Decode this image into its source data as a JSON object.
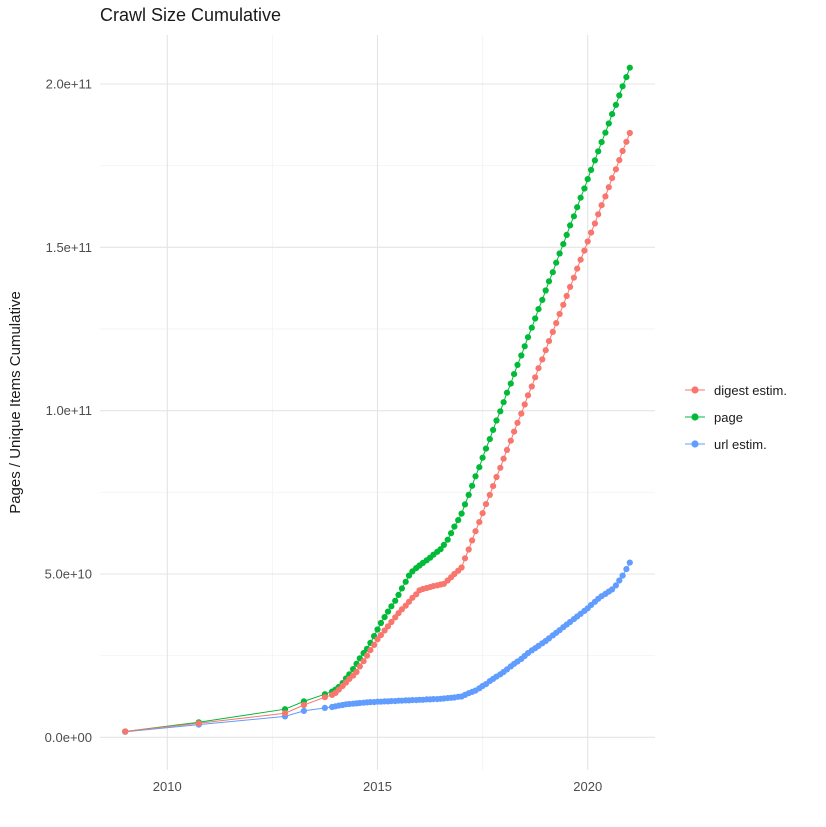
{
  "chart_data": {
    "type": "scatter",
    "title": "Crawl Size Cumulative",
    "xlabel": "",
    "ylabel": "Pages / Unique Items Cumulative",
    "legend_position": "right",
    "grid": {
      "major": "#e4e4e4",
      "minor": "#f3f3f3"
    },
    "xlim": [
      2008.4,
      2021.6
    ],
    "ylim_e9": [
      -10,
      215
    ],
    "x_ticks": {
      "values": [
        2010,
        2015,
        2020
      ],
      "labels": [
        "2010",
        "2015",
        "2020"
      ],
      "minor": [
        2012.5,
        2017.5
      ]
    },
    "y_ticks": {
      "values_e9": [
        0,
        50,
        100,
        150,
        200
      ],
      "labels": [
        "0.0e+00",
        "5.0e+10",
        "1.0e+11",
        "1.5e+11",
        "2.0e+11"
      ],
      "minor_e9": [
        25,
        75,
        125,
        175
      ]
    },
    "draw_order": [
      2,
      1,
      0
    ],
    "x": [
      2009,
      2010.75,
      2012.8,
      2013.25,
      2013.75,
      2013.92,
      2014,
      2014.08,
      2014.17,
      2014.25,
      2014.33,
      2014.42,
      2014.5,
      2014.58,
      2014.67,
      2014.75,
      2014.83,
      2014.92,
      2015,
      2015.08,
      2015.17,
      2015.25,
      2015.33,
      2015.42,
      2015.5,
      2015.58,
      2015.67,
      2015.75,
      2015.83,
      2015.92,
      2016,
      2016.08,
      2016.17,
      2016.25,
      2016.33,
      2016.42,
      2016.5,
      2016.58,
      2016.67,
      2016.75,
      2016.83,
      2016.92,
      2017,
      2017.08,
      2017.17,
      2017.25,
      2017.33,
      2017.42,
      2017.5,
      2017.58,
      2017.67,
      2017.75,
      2017.83,
      2017.92,
      2018,
      2018.08,
      2018.17,
      2018.25,
      2018.33,
      2018.42,
      2018.5,
      2018.58,
      2018.67,
      2018.75,
      2018.83,
      2018.92,
      2019,
      2019.08,
      2019.17,
      2019.25,
      2019.33,
      2019.42,
      2019.5,
      2019.58,
      2019.67,
      2019.75,
      2019.83,
      2019.92,
      2020,
      2020.08,
      2020.17,
      2020.25,
      2020.33,
      2020.42,
      2020.5,
      2020.58,
      2020.67,
      2020.75,
      2020.83,
      2020.92,
      2021
    ],
    "series": [
      {
        "name": "digest estim.",
        "slug": "digest-estim",
        "color": "#F8766D",
        "y_e9": [
          1.8,
          4.3,
          7.4,
          9.9,
          12.3,
          13,
          13.6,
          14.6,
          15.7,
          16.8,
          17.9,
          18.9,
          20,
          21.7,
          23.3,
          25,
          26.7,
          28.3,
          30,
          31.3,
          32.7,
          34,
          35.3,
          36.7,
          38,
          39.2,
          40.3,
          41.5,
          42.7,
          43.8,
          45,
          45.4,
          45.7,
          46,
          46.3,
          46.5,
          46.8,
          47,
          48,
          49,
          50,
          51,
          52,
          54.8,
          57.5,
          60.3,
          63.1,
          65.9,
          68.6,
          71.4,
          74.2,
          76.9,
          79.7,
          82.5,
          85.3,
          88,
          90.8,
          93.6,
          96.3,
          99.1,
          101.9,
          104.7,
          107.4,
          110.2,
          113,
          115.7,
          118.5,
          121.3,
          124.1,
          126.8,
          129.6,
          132.4,
          135.1,
          137.9,
          140.7,
          143.5,
          146.2,
          149,
          151.8,
          154.5,
          157.3,
          160.1,
          162.9,
          165.6,
          168.4,
          171.2,
          173.9,
          176.7,
          179.5,
          182.3,
          185
        ]
      },
      {
        "name": "page",
        "slug": "page",
        "color": "#00BA38",
        "y_e9": [
          1.8,
          4.6,
          8.6,
          11,
          13.2,
          14,
          14.6,
          15.4,
          16.6,
          18,
          19.3,
          20.9,
          22.5,
          24.2,
          25.8,
          27.1,
          28.9,
          31,
          33,
          35,
          36.8,
          38.5,
          40.1,
          41.8,
          43.6,
          45.6,
          47.6,
          49.5,
          50.8,
          51.8,
          52.6,
          53.4,
          54.2,
          55,
          55.9,
          56.8,
          57.6,
          58.9,
          60.5,
          62.5,
          64.5,
          66.5,
          68.5,
          71.3,
          74.2,
          77,
          79.9,
          82.7,
          85.6,
          88.4,
          91.3,
          94.1,
          97,
          99.8,
          102.6,
          105.5,
          108.3,
          111.2,
          114,
          116.9,
          119.7,
          122.5,
          125.4,
          128.2,
          131.1,
          133.9,
          136.8,
          139.6,
          142.4,
          145.3,
          148.1,
          151,
          153.8,
          156.7,
          159.5,
          162.3,
          165.2,
          168,
          170.9,
          173.7,
          176.6,
          179.4,
          182.2,
          185.1,
          187.9,
          190.8,
          193.6,
          196.5,
          199.3,
          202.1,
          205
        ]
      },
      {
        "name": "url estim.",
        "slug": "url-estim",
        "color": "#619CFF",
        "y_e9": [
          1.7,
          3.9,
          6.4,
          8.1,
          9,
          9.3,
          9.5,
          9.7,
          9.9,
          10.1,
          10.2,
          10.3,
          10.4,
          10.5,
          10.6,
          10.7,
          10.8,
          10.8,
          10.9,
          10.9,
          11,
          11,
          11.1,
          11.1,
          11.2,
          11.2,
          11.3,
          11.3,
          11.4,
          11.4,
          11.5,
          11.5,
          11.6,
          11.6,
          11.7,
          11.7,
          11.8,
          11.9,
          12,
          12.1,
          12.2,
          12.4,
          12.5,
          13,
          13.5,
          13.9,
          14.3,
          15,
          15.7,
          16.3,
          17.2,
          17.9,
          18.6,
          19.3,
          20,
          20.8,
          21.7,
          22.5,
          23.2,
          24,
          24.9,
          25.8,
          26.6,
          27.3,
          28,
          28.8,
          29.5,
          30.3,
          31.2,
          32,
          32.8,
          33.7,
          34.5,
          35.3,
          36.2,
          37,
          37.8,
          38.7,
          39.5,
          40.5,
          41.5,
          42.4,
          43.2,
          43.9,
          44.6,
          45.3,
          46.5,
          48,
          49.5,
          51.5,
          53.5
        ]
      }
    ]
  }
}
